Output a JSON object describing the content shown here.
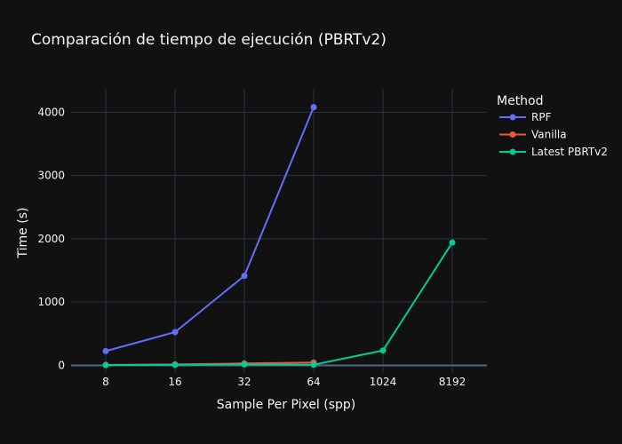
{
  "chart_data": {
    "type": "line",
    "title": "Comparación de tiempo de ejecución (PBRTv2)",
    "xlabel": "Sample Per Pixel (spp)",
    "ylabel": "Time (s)",
    "categories": [
      "8",
      "16",
      "32",
      "64",
      "1024",
      "8192"
    ],
    "ylim": [
      -120,
      4370
    ],
    "yticks": [
      0,
      1000,
      2000,
      3000,
      4000
    ],
    "grid": true,
    "legend": {
      "title": "Method",
      "placement": "right"
    },
    "series": [
      {
        "name": "RPF",
        "color": "#636efa",
        "values": [
          225,
          525,
          1415,
          4080,
          null,
          null
        ]
      },
      {
        "name": "Vanilla",
        "color": "#ef553b",
        "values": [
          8,
          15,
          30,
          45,
          null,
          null
        ]
      },
      {
        "name": "Latest PBRTv2",
        "color": "#00cc96",
        "values": [
          3,
          8,
          15,
          10,
          235,
          1940
        ]
      }
    ]
  }
}
